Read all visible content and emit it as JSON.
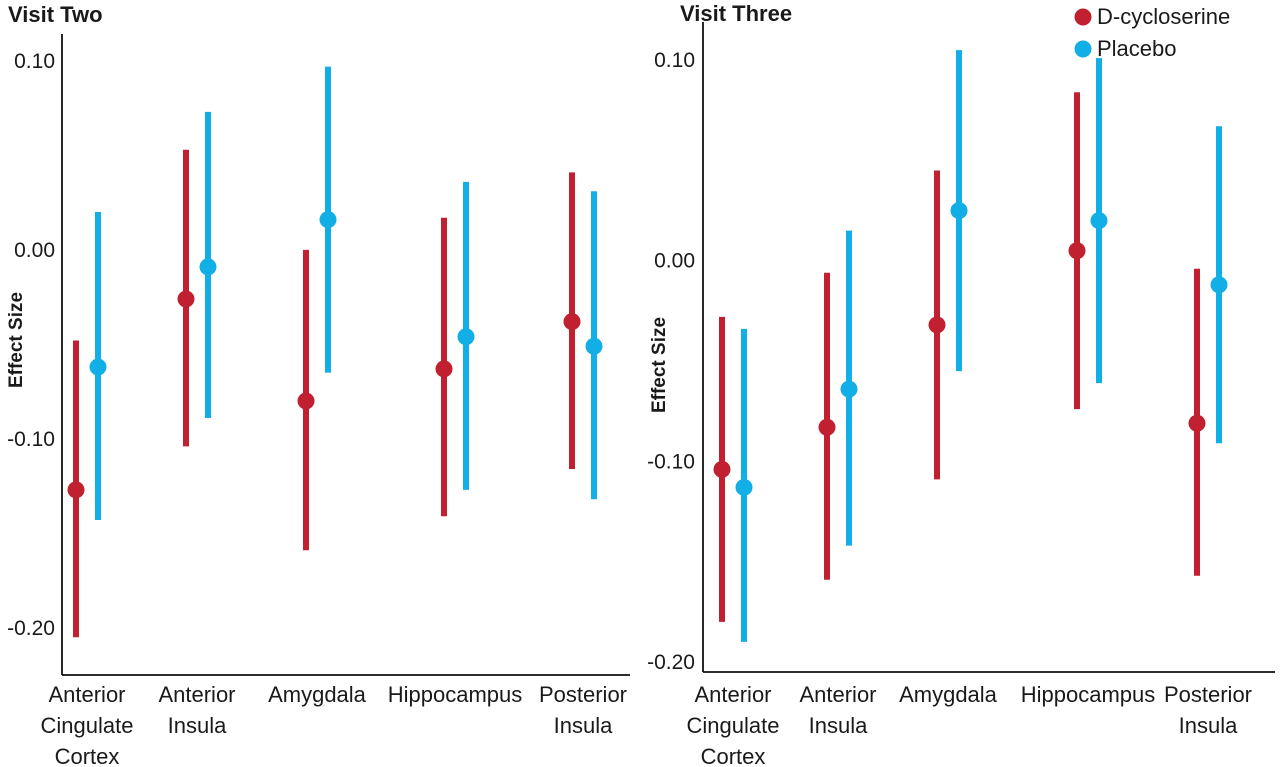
{
  "colors": {
    "D-cycloserine": "#c0202f",
    "Placebo": "#12aee6"
  },
  "legend": [
    "D-cycloserine",
    "Placebo"
  ],
  "chart_data": [
    {
      "type": "errorbar",
      "title": "Visit Two",
      "ylabel": "Effect Size",
      "ylim": [
        -0.225,
        0.11
      ],
      "yticks": [
        "0.10",
        "0.00",
        "-0.10",
        "-0.20"
      ],
      "yticks_values": [
        0.1,
        0.0,
        -0.1,
        -0.2
      ],
      "categories": [
        "Anterior Cingulate Cortex",
        "Anterior Insula",
        "Amygdala",
        "Hippocampus",
        "Posterior Insula"
      ],
      "category_lines": [
        [
          "Anterior",
          "Cingulate",
          "Cortex"
        ],
        [
          "Anterior",
          "Insula"
        ],
        [
          "Amygdala"
        ],
        [
          "Hippocampus"
        ],
        [
          "Posterior",
          "Insula"
        ]
      ],
      "series": [
        {
          "name": "D-cycloserine",
          "estimate": [
            -0.127,
            -0.026,
            -0.08,
            -0.063,
            -0.038
          ],
          "lower": [
            -0.205,
            -0.104,
            -0.159,
            -0.141,
            -0.116
          ],
          "upper": [
            -0.048,
            0.053,
            0.0,
            0.017,
            0.041
          ]
        },
        {
          "name": "Placebo",
          "estimate": [
            -0.062,
            -0.009,
            0.016,
            -0.046,
            -0.051
          ],
          "lower": [
            -0.143,
            -0.089,
            -0.065,
            -0.127,
            -0.132
          ],
          "upper": [
            0.02,
            0.073,
            0.097,
            0.036,
            0.031
          ]
        }
      ]
    },
    {
      "type": "errorbar",
      "title": "Visit Three",
      "ylabel": "Effect Size",
      "ylim": [
        -0.205,
        0.115
      ],
      "yticks": [
        "0.10",
        "0.00",
        "-0.10",
        "-0.20"
      ],
      "yticks_values": [
        0.1,
        0.0,
        -0.1,
        -0.2
      ],
      "categories": [
        "Anterior Cingulate Cortex",
        "Anterior Insula",
        "Amygdala",
        "Hippocampus",
        "Posterior Insula"
      ],
      "category_lines": [
        [
          "Anterior",
          "Cingulate",
          "Cortex"
        ],
        [
          "Anterior",
          "Insula"
        ],
        [
          "Amygdala"
        ],
        [
          "Hippocampus"
        ],
        [
          "Posterior",
          "Insula"
        ]
      ],
      "series": [
        {
          "name": "D-cycloserine",
          "estimate": [
            -0.104,
            -0.083,
            -0.032,
            0.005,
            -0.081
          ],
          "lower": [
            -0.18,
            -0.159,
            -0.109,
            -0.074,
            -0.157
          ],
          "upper": [
            -0.028,
            -0.006,
            0.045,
            0.084,
            -0.004
          ]
        },
        {
          "name": "Placebo",
          "estimate": [
            -0.113,
            -0.064,
            0.025,
            0.02,
            -0.012
          ],
          "lower": [
            -0.19,
            -0.142,
            -0.055,
            -0.061,
            -0.091
          ],
          "upper": [
            -0.034,
            0.015,
            0.105,
            0.101,
            0.067
          ]
        }
      ]
    }
  ]
}
